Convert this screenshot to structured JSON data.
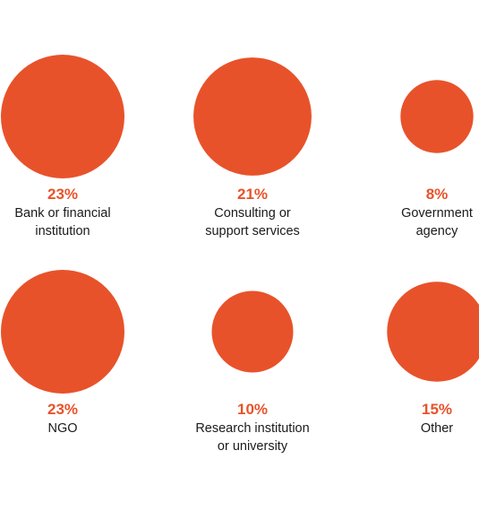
{
  "colors": {
    "bubble": "#e8522a",
    "percent_text": "#e8522a",
    "label_text": "#1a1a1a"
  },
  "chart_data": {
    "type": "bubble",
    "title": "",
    "unit": "%",
    "items": [
      {
        "percent": 23,
        "percent_label": "23%",
        "label_lines": [
          "Bank or financial",
          "institution"
        ]
      },
      {
        "percent": 21,
        "percent_label": "21%",
        "label_lines": [
          "Consulting or",
          "support services"
        ]
      },
      {
        "percent": 8,
        "percent_label": "8%",
        "label_lines": [
          "Government",
          "agency"
        ]
      },
      {
        "percent": 23,
        "percent_label": "23%",
        "label_lines": [
          "NGO"
        ]
      },
      {
        "percent": 10,
        "percent_label": "10%",
        "label_lines": [
          "Research institution",
          "or university"
        ]
      },
      {
        "percent": 15,
        "percent_label": "15%",
        "label_lines": [
          "Other"
        ]
      }
    ]
  }
}
